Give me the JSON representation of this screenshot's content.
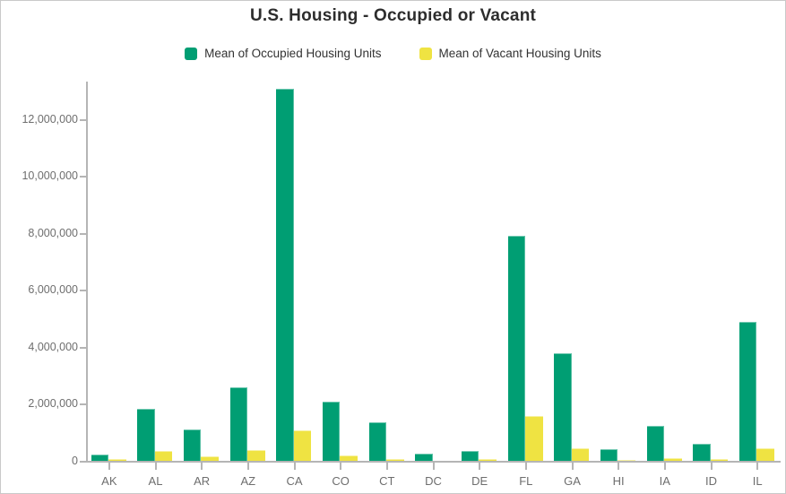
{
  "title": "U.S. Housing - Occupied or Vacant",
  "colors": {
    "occupied_green": "#009E73",
    "vacant_yellow": "#EFE342",
    "axis_gray": "#b5b5b5",
    "label_gray": "#6e6e6e",
    "title_color": "#2d2d2d"
  },
  "legend": {
    "items": [
      {
        "label": "Mean of Occupied Housing Units",
        "color": "#009E73"
      },
      {
        "label": "Mean of Vacant Housing Units",
        "color": "#EFE342"
      }
    ]
  },
  "chart_data": {
    "type": "bar",
    "title": "U.S. Housing - Occupied or Vacant",
    "xlabel": "",
    "ylabel": "",
    "grid": "off",
    "legend_position": "top",
    "categories": [
      "AK",
      "AL",
      "AR",
      "AZ",
      "CA",
      "CO",
      "CT",
      "DC",
      "DE",
      "FL",
      "GA",
      "HI",
      "IA",
      "ID",
      "IL"
    ],
    "series": [
      {
        "name": "Mean of Occupied Housing Units",
        "color": "#009E73",
        "values": [
          230000,
          1850000,
          1130000,
          2590000,
          13100000,
          2090000,
          1360000,
          270000,
          350000,
          7920000,
          3810000,
          430000,
          1250000,
          630000,
          4900000
        ]
      },
      {
        "name": "Mean of Vacant Housing Units",
        "color": "#EFE342",
        "values": [
          65000,
          350000,
          175000,
          380000,
          1080000,
          200000,
          95000,
          30000,
          75000,
          1600000,
          470000,
          60000,
          125000,
          80000,
          470000
        ]
      }
    ],
    "ylim": [
      0,
      13350000
    ],
    "yticks": [
      0,
      2000000,
      4000000,
      6000000,
      8000000,
      10000000,
      12000000
    ],
    "ytick_labels": [
      "0",
      "2,000,000",
      "4,000,000",
      "6,000,000",
      "8,000,000",
      "10,000,000",
      "12,000,000"
    ]
  }
}
